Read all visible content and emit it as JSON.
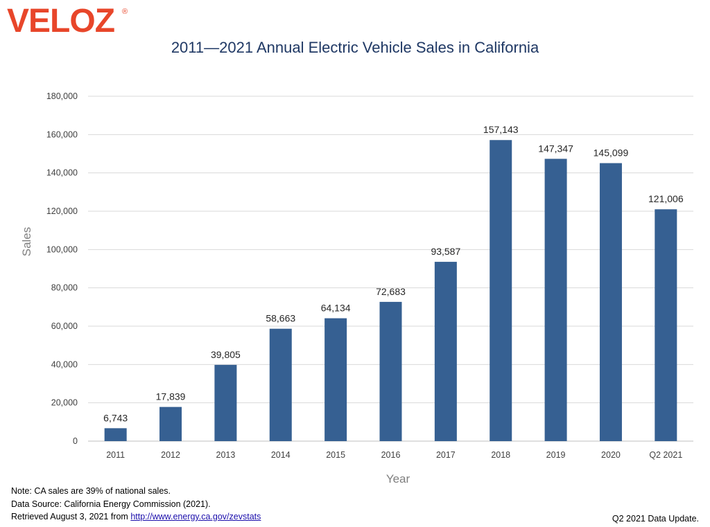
{
  "logo": {
    "text": "VELOZ",
    "mark": "®",
    "color": "#e8462a"
  },
  "chart_data": {
    "type": "bar",
    "title": "2011—2021 Annual Electric Vehicle Sales in California",
    "xlabel": "Year",
    "ylabel": "Sales",
    "categories": [
      "2011",
      "2012",
      "2013",
      "2014",
      "2015",
      "2016",
      "2017",
      "2018",
      "2019",
      "2020",
      "Q2 2021"
    ],
    "values": [
      6743,
      17839,
      39805,
      58663,
      64134,
      72683,
      93587,
      157143,
      147347,
      145099,
      121006
    ],
    "data_labels": [
      "6,743",
      "17,839",
      "39,805",
      "58,663",
      "64,134",
      "72,683",
      "93,587",
      "157,143",
      "147,347",
      "145,099",
      "121,006"
    ],
    "ylim": [
      0,
      180000
    ],
    "yticks": [
      0,
      20000,
      40000,
      60000,
      80000,
      100000,
      120000,
      140000,
      160000,
      180000
    ],
    "ytick_labels": [
      "0",
      "20,000",
      "40,000",
      "60,000",
      "80,000",
      "100,000",
      "120,000",
      "140,000",
      "160,000",
      "180,000"
    ],
    "grid": true,
    "bar_color": "#366092"
  },
  "notes": {
    "line1": "Note: CA sales are 39%  of national sales.",
    "line2": "Data Source: California Energy Commission (2021).",
    "line3_prefix": "Retrieved August 3, 2021 from ",
    "link_text": "http://www.energy.ca.gov/zevstats"
  },
  "update_text": "Q2 2021 Data Update."
}
